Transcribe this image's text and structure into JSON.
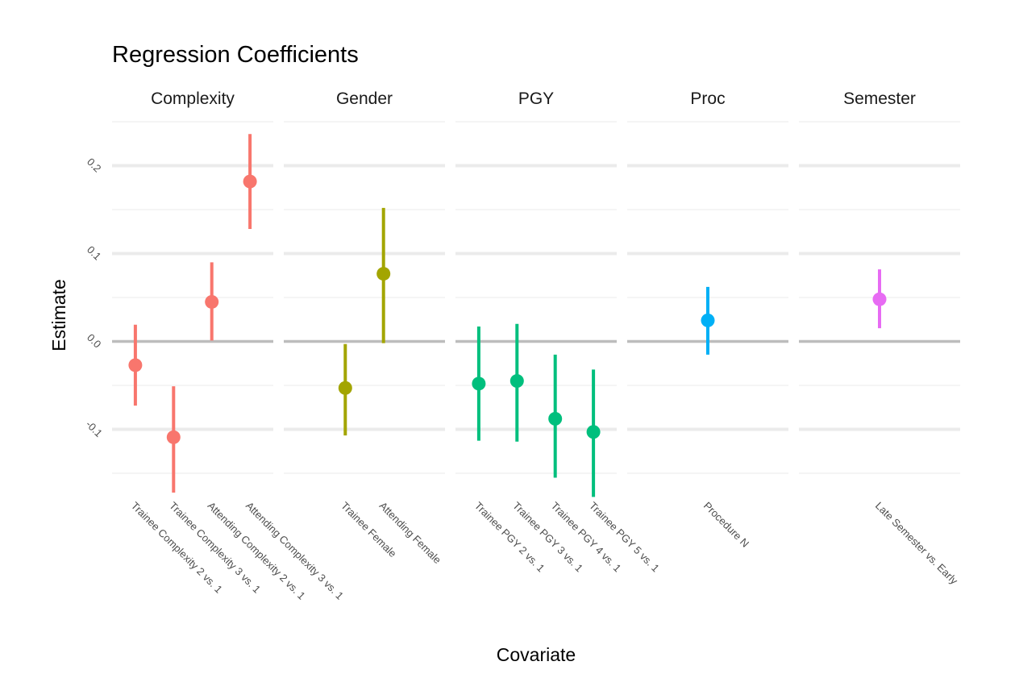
{
  "chart_data": {
    "type": "scatter",
    "subtype": "pointrange-faceted",
    "title": "Regression Coefficients",
    "xlabel": "Covariate",
    "ylabel": "Estimate",
    "ylim": [
      -0.15,
      0.25
    ],
    "yticks": [
      -0.1,
      0.0,
      0.1,
      0.2
    ],
    "ytick_labels": [
      "-0.1",
      "0.0",
      "0.1",
      "0.2"
    ],
    "reference_line": 0.0,
    "grid": true,
    "facets": [
      {
        "name": "Complexity",
        "color": "#F8766D",
        "points": [
          {
            "label": "Trainee Complexity 2 vs. 1",
            "estimate": -0.027,
            "lower": -0.073,
            "upper": 0.019
          },
          {
            "label": "Trainee Complexity 3 vs. 1",
            "estimate": -0.109,
            "lower": -0.172,
            "upper": -0.051
          },
          {
            "label": "Attending Complexity 2 vs. 1",
            "estimate": 0.045,
            "lower": 0.001,
            "upper": 0.09
          },
          {
            "label": "Attending Complexity 3 vs. 1",
            "estimate": 0.182,
            "lower": 0.128,
            "upper": 0.236
          }
        ]
      },
      {
        "name": "Gender",
        "color": "#A3A500",
        "points": [
          {
            "label": "Trainee Female",
            "estimate": -0.053,
            "lower": -0.107,
            "upper": -0.003
          },
          {
            "label": "Attending Female",
            "estimate": 0.077,
            "lower": -0.002,
            "upper": 0.152
          }
        ]
      },
      {
        "name": "PGY",
        "color": "#00BF7D",
        "points": [
          {
            "label": "Trainee PGY 2 vs. 1",
            "estimate": -0.048,
            "lower": -0.113,
            "upper": 0.017
          },
          {
            "label": "Trainee PGY 3 vs. 1",
            "estimate": -0.045,
            "lower": -0.114,
            "upper": 0.02
          },
          {
            "label": "Trainee PGY 4 vs. 1",
            "estimate": -0.088,
            "lower": -0.155,
            "upper": -0.015
          },
          {
            "label": "Trainee PGY 5 vs. 1",
            "estimate": -0.103,
            "lower": -0.177,
            "upper": -0.032
          }
        ]
      },
      {
        "name": "Proc",
        "color": "#00B0F6",
        "points": [
          {
            "label": "Procedure N",
            "estimate": 0.024,
            "lower": -0.015,
            "upper": 0.062
          }
        ]
      },
      {
        "name": "Semester",
        "color": "#E76BF3",
        "points": [
          {
            "label": "Late Semester vs. Early",
            "estimate": 0.048,
            "lower": 0.015,
            "upper": 0.082
          }
        ]
      }
    ]
  }
}
